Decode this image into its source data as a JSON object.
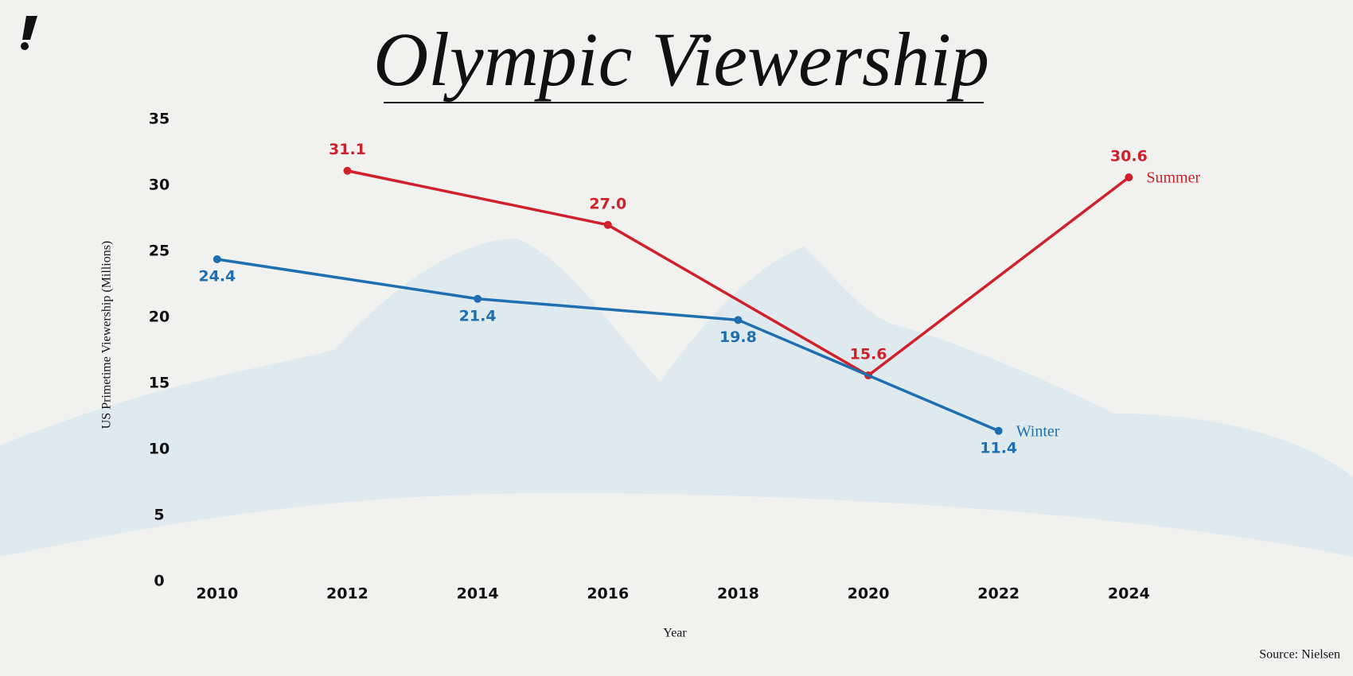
{
  "chart_data": {
    "type": "line",
    "title": "Olympic Viewership",
    "y_label": "US Primetime Viewership (Millions)",
    "x_label": "Year",
    "source": "Source: Nielsen",
    "xlim": [
      2009,
      2026
    ],
    "xticks": [
      2010,
      2012,
      2014,
      2016,
      2018,
      2020,
      2022,
      2024
    ],
    "ylim": [
      0,
      35
    ],
    "yticks": [
      0,
      5,
      10,
      15,
      20,
      25,
      30,
      35
    ],
    "grid": false,
    "series": [
      {
        "name": "Summer",
        "color": "#d0202a",
        "x": [
          2012,
          2016,
          2020,
          2024
        ],
        "values": [
          31.1,
          27.0,
          15.6,
          30.6
        ],
        "value_labels": [
          "31.1",
          "27.0",
          "15.6",
          "30.6"
        ],
        "label_side": "above"
      },
      {
        "name": "Winter",
        "color": "#1f6fb0",
        "x": [
          2010,
          2014,
          2018,
          2022
        ],
        "values": [
          24.4,
          21.4,
          19.8,
          11.4
        ],
        "value_labels": [
          "24.4",
          "21.4",
          "19.8",
          "11.4"
        ],
        "label_side": "below"
      }
    ]
  }
}
